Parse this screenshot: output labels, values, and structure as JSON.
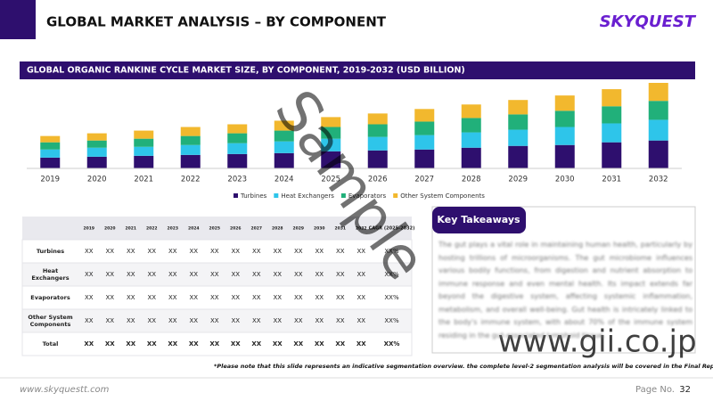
{
  "header": {
    "title": "GLOBAL MARKET ANALYSIS – BY COMPONENT",
    "logo": "SKYQUEST"
  },
  "chart_data": {
    "type": "bar",
    "stacked": true,
    "title": "GLOBAL ORGANIC RANKINE CYCLE MARKET SIZE, BY COMPONENT, 2019-2032 (USD BILLION)",
    "categories": [
      "2019",
      "2020",
      "2021",
      "2022",
      "2023",
      "2024",
      "2025",
      "2026",
      "2027",
      "2028",
      "2029",
      "2030",
      "2031",
      "2032"
    ],
    "series": [
      {
        "name": "Turbines",
        "color": "#2e0f6e",
        "values": [
          12,
          13,
          14,
          15,
          16,
          17,
          19,
          20,
          21,
          23,
          25,
          26,
          29,
          31
        ]
      },
      {
        "name": "Heat Exchangers",
        "color": "#2ec5ea",
        "values": [
          9,
          10,
          10,
          11,
          12,
          13,
          14,
          15,
          16,
          17,
          18,
          20,
          21,
          23
        ]
      },
      {
        "name": "Evaporators",
        "color": "#21b07a",
        "values": [
          8,
          8,
          9,
          10,
          11,
          12,
          13,
          14,
          15,
          16,
          17,
          18,
          19,
          21
        ]
      },
      {
        "name": "Other System Components",
        "color": "#f2b82e",
        "values": [
          7,
          8,
          9,
          10,
          10,
          11,
          11,
          12,
          14,
          15,
          16,
          17,
          19,
          20
        ]
      }
    ]
  },
  "table": {
    "columns": [
      "2019",
      "2020",
      "2021",
      "2022",
      "2023",
      "2024",
      "2025",
      "2026",
      "2027",
      "2028",
      "2029",
      "2030",
      "2031",
      "2032",
      "CAGR (2025-2032)"
    ],
    "rows": [
      [
        "Turbines",
        "XX",
        "XX",
        "XX",
        "XX",
        "XX",
        "XX",
        "XX",
        "XX",
        "XX",
        "XX",
        "XX",
        "XX",
        "XX",
        "XX",
        "XX%"
      ],
      [
        "Heat Exchangers",
        "XX",
        "XX",
        "XX",
        "XX",
        "XX",
        "XX",
        "XX",
        "XX",
        "XX",
        "XX",
        "XX",
        "XX",
        "XX",
        "XX",
        "XX%"
      ],
      [
        "Evaporators",
        "XX",
        "XX",
        "XX",
        "XX",
        "XX",
        "XX",
        "XX",
        "XX",
        "XX",
        "XX",
        "XX",
        "XX",
        "XX",
        "XX",
        "XX%"
      ],
      [
        "Other System Components",
        "XX",
        "XX",
        "XX",
        "XX",
        "XX",
        "XX",
        "XX",
        "XX",
        "XX",
        "XX",
        "XX",
        "XX",
        "XX",
        "XX",
        "XX%"
      ],
      [
        "Total",
        "XX",
        "XX",
        "XX",
        "XX",
        "XX",
        "XX",
        "XX",
        "XX",
        "XX",
        "XX",
        "XX",
        "XX",
        "XX",
        "XX",
        "XX%"
      ]
    ]
  },
  "takeaways": {
    "title": "Key Takeaways",
    "text": "The gut plays a vital role in maintaining human health, particularly by hosting trillions of microorganisms. The gut microbiome influences various bodily functions, from digestion and nutrient absorption to immune response and even mental health. Its impact extends far beyond the digestive system, affecting systemic inflammation, metabolism, and overall well-being. Gut health is intricately linked to the body's immune system, with about 70% of the immune system residing in the gut-associated lymphoid tissue."
  },
  "footnote": "*Please note that this slide represents an indicative segmentation overview. the complete level-2 segmentation analysis will be covered in the Final Report.",
  "footer": {
    "website": "www.skyquestt.com",
    "page_label": "Page No.",
    "page_number": "32"
  },
  "watermarks": [
    "Sample",
    "www.gii.co.jp"
  ]
}
